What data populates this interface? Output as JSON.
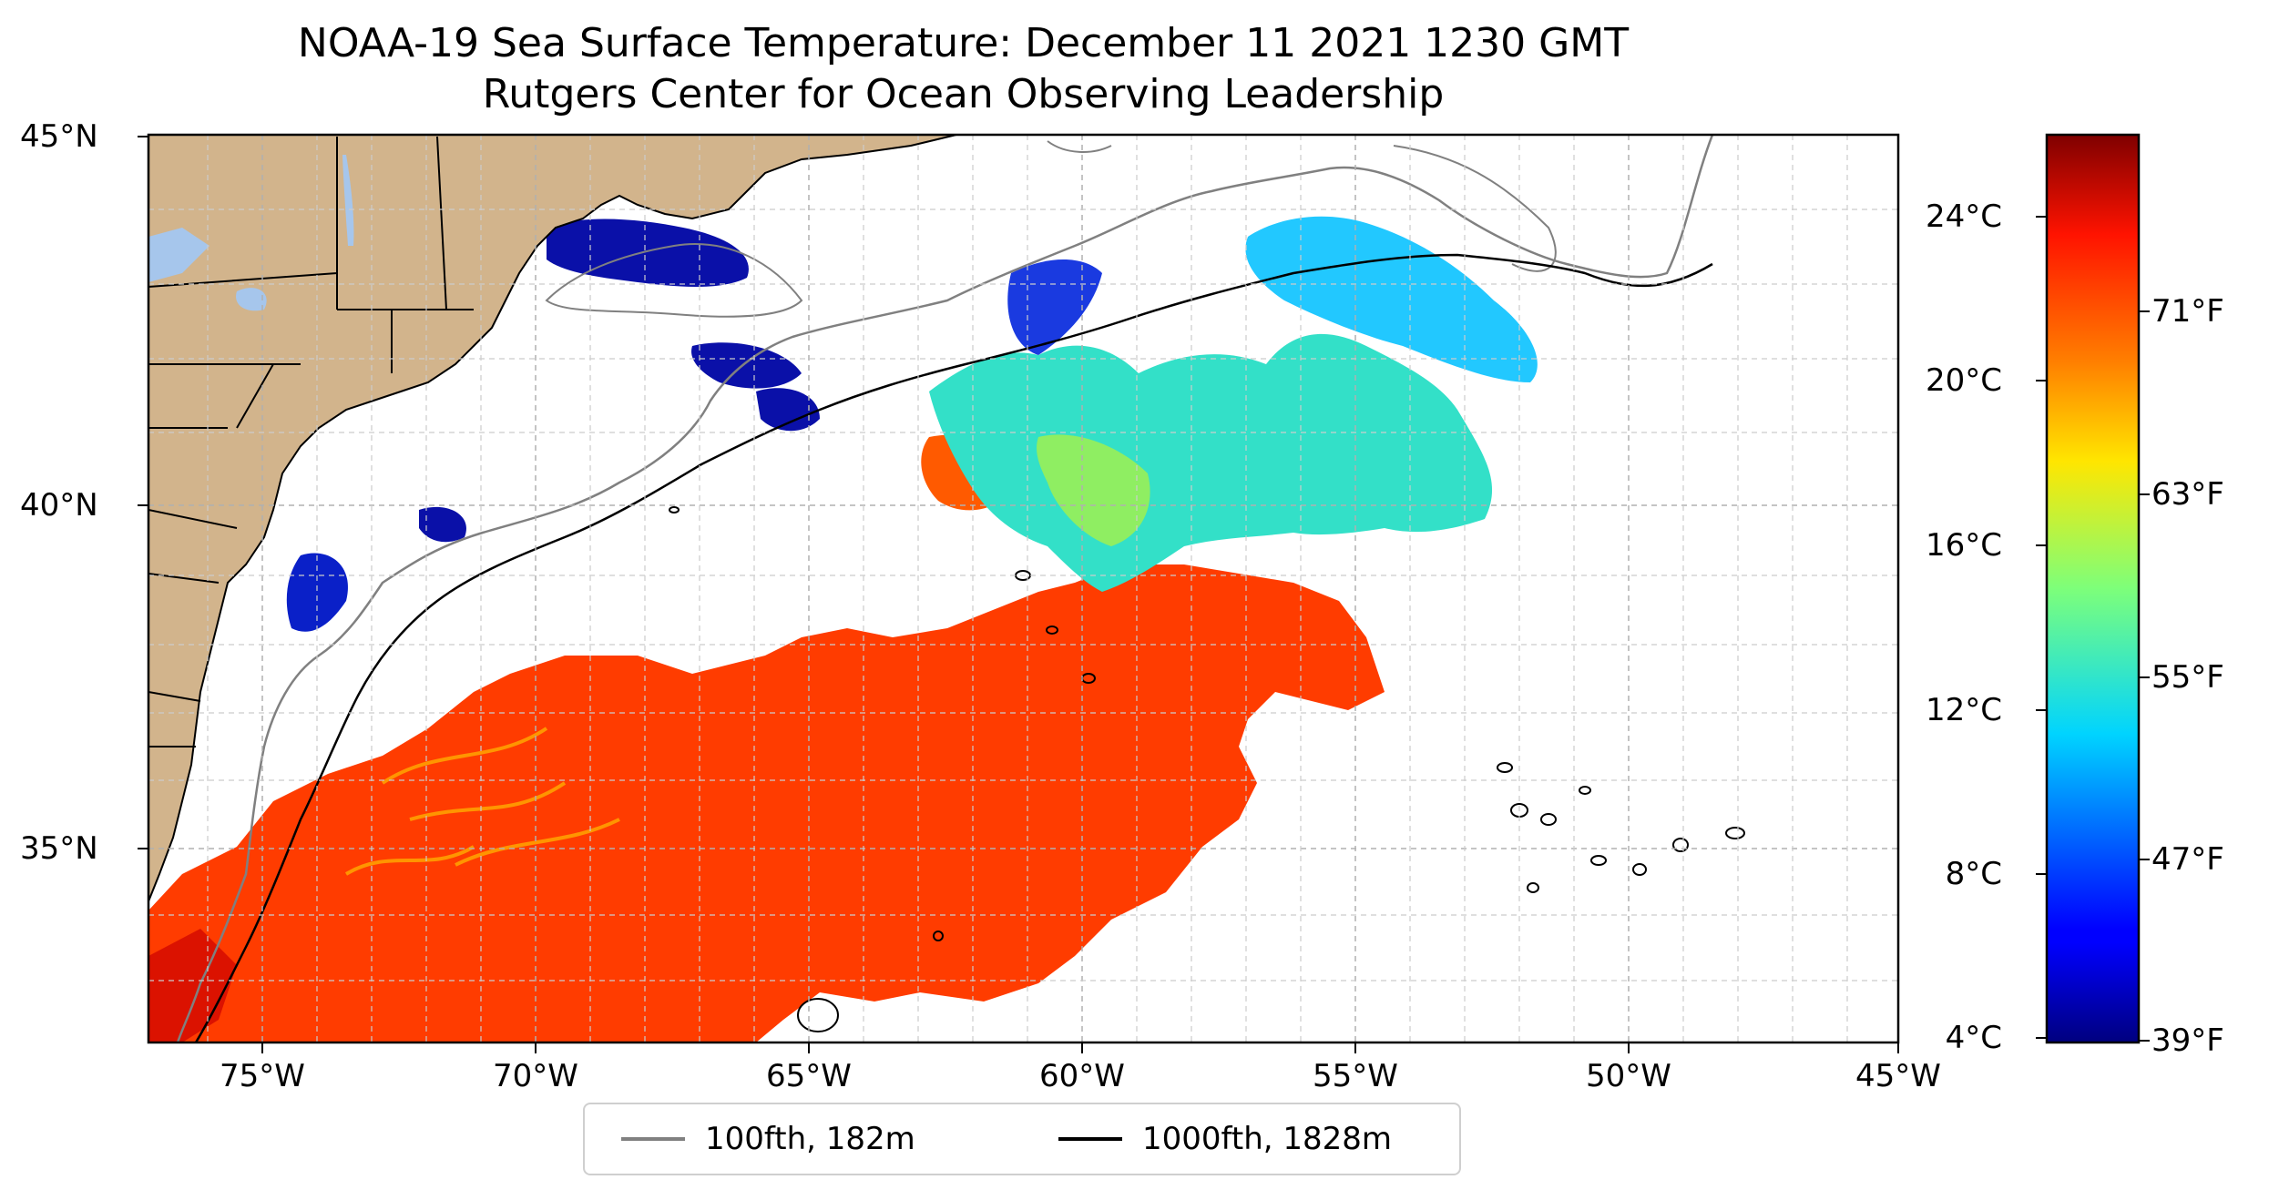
{
  "title": {
    "line1": "NOAA-19 Sea Surface Temperature: December 11 2021 1230 GMT",
    "line2": "Rutgers Center for Ocean Observing Leadership"
  },
  "axes": {
    "x_ticks": [
      "75°W",
      "70°W",
      "65°W",
      "60°W",
      "55°W",
      "50°W",
      "45°W"
    ],
    "y_ticks": [
      "45°N",
      "40°N",
      "35°N"
    ],
    "lon_range": [
      -77,
      -45
    ],
    "lat_range": [
      32.3,
      45
    ]
  },
  "colorbar": {
    "celsius_ticks": [
      "24°C",
      "20°C",
      "16°C",
      "12°C",
      "8°C",
      "4°C"
    ],
    "fahrenheit_ticks": [
      "71°F",
      "63°F",
      "55°F",
      "47°F",
      "39°F"
    ],
    "colormap": "jet",
    "range_c": [
      4,
      26
    ]
  },
  "legend": {
    "items": [
      {
        "label": "100fth, 182m",
        "color": "#808080"
      },
      {
        "label": "1000fth, 1828m",
        "color": "#000000"
      }
    ],
    "placement": "bottom-center"
  },
  "colors": {
    "land": "#d2b48c",
    "lakes": "#a6c6ec",
    "warm_water": "#ff3c00",
    "cold_water": "#0a10a8"
  }
}
